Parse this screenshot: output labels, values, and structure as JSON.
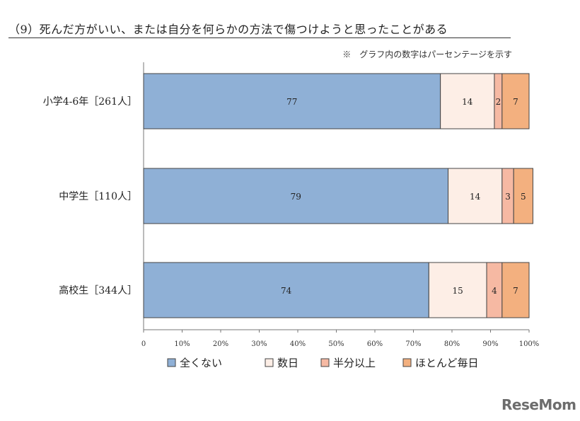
{
  "page": {
    "title": "（9）死んだ方がいい、または自分を何らかの方法で傷つけようと思ったことがある",
    "note": "※　グラフ内の数字はパーセンテージを示す",
    "watermark": "ReseMom"
  },
  "chart_data": {
    "type": "bar",
    "orientation": "horizontal",
    "stacked": true,
    "categories": [
      "小学4-6年［261人］",
      "中学生［110人］",
      "高校生［344人］"
    ],
    "series": [
      {
        "name": "全くない",
        "values": [
          77,
          79,
          74
        ],
        "color": "#8fb0d6"
      },
      {
        "name": "数日",
        "values": [
          14,
          14,
          15
        ],
        "color": "#fdeee6"
      },
      {
        "name": "半分以上",
        "values": [
          2,
          3,
          4
        ],
        "color": "#f6b9a3"
      },
      {
        "name": "ほとんど毎日",
        "values": [
          7,
          5,
          7
        ],
        "color": "#f3b07f"
      }
    ],
    "xlim": [
      0,
      100
    ],
    "xticks": [
      "0",
      "10%",
      "20%",
      "30%",
      "40%",
      "50%",
      "60%",
      "70%",
      "80%",
      "90%",
      "100%"
    ],
    "legend_position": "bottom",
    "grid": false
  }
}
